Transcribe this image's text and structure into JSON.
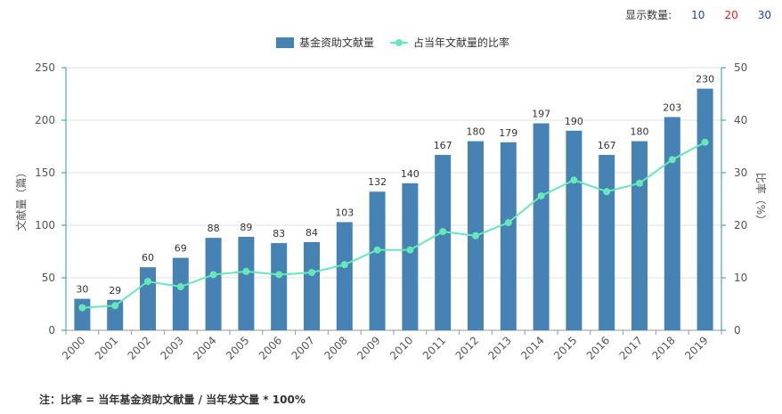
{
  "display_count": {
    "label": "显示数量:",
    "options": [
      {
        "text": "10",
        "color": "#1f3fbf"
      },
      {
        "text": "20",
        "color": "#e02020"
      },
      {
        "text": "30",
        "color": "#1f3fbf"
      }
    ]
  },
  "footnote": "注：比率 = 当年基金资助文献量 / 当年发文量 * 100%",
  "colors": {
    "bar": "#4682b4",
    "line": "#66e8b8",
    "axis": "#2a9d8f",
    "grid": "#e0e0e0"
  },
  "chart_data": {
    "type": "bar",
    "categories": [
      "2000",
      "2001",
      "2002",
      "2003",
      "2004",
      "2005",
      "2006",
      "2007",
      "2008",
      "2009",
      "2010",
      "2011",
      "2012",
      "2013",
      "2014",
      "2015",
      "2016",
      "2017",
      "2018",
      "2019"
    ],
    "series": [
      {
        "name": "基金资助文献量",
        "type": "bar",
        "axis": "left",
        "values": [
          30,
          29,
          60,
          69,
          88,
          89,
          83,
          84,
          103,
          132,
          140,
          167,
          180,
          179,
          197,
          190,
          167,
          180,
          203,
          230
        ],
        "data_labels": true
      },
      {
        "name": "占当年文献量的比率",
        "type": "line",
        "axis": "right",
        "values": [
          4.3,
          4.7,
          9.3,
          8.3,
          10.6,
          11.2,
          10.6,
          11.0,
          12.5,
          15.3,
          15.3,
          18.8,
          18.0,
          20.5,
          25.6,
          28.6,
          26.4,
          28.0,
          32.5,
          35.8
        ]
      }
    ],
    "ylabel_left": "文献量（篇）",
    "ylabel_right": "比率（%）",
    "ylim_left": [
      0,
      250
    ],
    "yticks_left": [
      0,
      50,
      100,
      150,
      200,
      250
    ],
    "ylim_right": [
      0,
      50
    ],
    "yticks_right": [
      0,
      10,
      20,
      30,
      40,
      50
    ],
    "grid": true,
    "legend_position": "top-center"
  }
}
